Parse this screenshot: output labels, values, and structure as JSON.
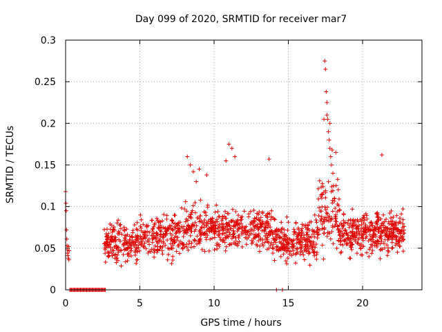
{
  "chart_data": {
    "type": "scatter",
    "title": "Day 099 of 2020, SRMTID for receiver mar7",
    "xlabel": "GPS time / hours",
    "ylabel": "SRMTID / TECUs",
    "xlim": [
      0,
      24
    ],
    "ylim": [
      0,
      0.3
    ],
    "xticks": [
      0,
      5,
      10,
      15,
      20
    ],
    "yticks": [
      0,
      0.05,
      0.1,
      0.15,
      0.2,
      0.25,
      0.3
    ],
    "xtick_labels": [
      "0",
      "5",
      "10",
      "15",
      "20"
    ],
    "ytick_labels": [
      "0",
      "0.05",
      "0.1",
      "0.15",
      "0.2",
      "0.25",
      "0.3"
    ],
    "grid": true,
    "marker": "+",
    "series_color": "#e00000",
    "series": [
      {
        "name": "SRMTID",
        "x": [
          0.0,
          0.02,
          0.04,
          0.06,
          0.08,
          0.1,
          0.12,
          0.14,
          0.16,
          0.18,
          0.2,
          0.22,
          0.24,
          0.28,
          0.34,
          0.4,
          0.46,
          0.52,
          0.58,
          0.64,
          0.7,
          0.76,
          0.82,
          0.88,
          0.94,
          1.0,
          1.06,
          1.12,
          1.18,
          1.24,
          1.3,
          1.36,
          1.42,
          1.48,
          1.54,
          1.6,
          1.66,
          1.72,
          1.78,
          1.84,
          1.9,
          1.96,
          2.02,
          2.08,
          2.14,
          2.2,
          2.26,
          2.32,
          2.38,
          2.44,
          2.5,
          2.56,
          2.62,
          2.68,
          14.2,
          14.6,
          17.45,
          17.5,
          17.55,
          17.6,
          17.65,
          17.7,
          17.75,
          17.8,
          17.85,
          17.9,
          17.95,
          18.0,
          18.05,
          18.1,
          18.15,
          18.2,
          18.25,
          18.3,
          18.35,
          18.4,
          18.45,
          18.5,
          18.55,
          18.6,
          18.65,
          18.7,
          18.75,
          18.8,
          18.85,
          18.9,
          18.95,
          19.0,
          19.1,
          19.2,
          19.3,
          19.4,
          19.5,
          19.6,
          19.7,
          19.8,
          19.9,
          20.0,
          20.1,
          20.2,
          20.3,
          20.4,
          20.5,
          20.6,
          20.7,
          20.8,
          20.9,
          21.0,
          21.1,
          21.2,
          21.3,
          21.4,
          21.5,
          21.6,
          21.7,
          21.8,
          21.9,
          22.0,
          22.1,
          22.2,
          22.3,
          22.4,
          22.5,
          22.6,
          22.7,
          22.8,
          8.2,
          8.4,
          8.6,
          8.8,
          9.0,
          9.5,
          10.8,
          11.0,
          11.2,
          11.4,
          13.7,
          17.4,
          17.6,
          17.8,
          18.2
        ],
        "y": [
          0.118,
          0.104,
          0.095,
          0.072,
          0.061,
          0.053,
          0.048,
          0.044,
          0.041,
          0.038,
          0.052,
          0.036,
          0.047,
          0.0,
          0.0,
          0.0,
          0.0,
          0.0,
          0.0,
          0.0,
          0.0,
          0.0,
          0.0,
          0.0,
          0.0,
          0.0,
          0.0,
          0.0,
          0.0,
          0.0,
          0.0,
          0.0,
          0.0,
          0.0,
          0.0,
          0.0,
          0.0,
          0.0,
          0.0,
          0.0,
          0.0,
          0.0,
          0.0,
          0.0,
          0.0,
          0.0,
          0.0,
          0.0,
          0.0,
          0.0,
          0.0,
          0.0,
          0.0,
          0.0,
          0.0,
          0.0,
          0.275,
          0.265,
          0.238,
          0.225,
          0.205,
          0.19,
          0.18,
          0.17,
          0.16,
          0.15,
          0.168,
          0.14,
          0.125,
          0.11,
          0.098,
          0.088,
          0.082,
          0.076,
          0.072,
          0.069,
          0.066,
          0.062,
          0.07,
          0.078,
          0.074,
          0.065,
          0.06,
          0.058,
          0.072,
          0.068,
          0.055,
          0.062,
          0.075,
          0.08,
          0.07,
          0.065,
          0.06,
          0.073,
          0.082,
          0.068,
          0.055,
          0.062,
          0.07,
          0.078,
          0.085,
          0.072,
          0.066,
          0.06,
          0.058,
          0.075,
          0.08,
          0.088,
          0.07,
          0.065,
          0.162,
          0.09,
          0.075,
          0.068,
          0.06,
          0.07,
          0.082,
          0.078,
          0.072,
          0.065,
          0.06,
          0.055,
          0.062,
          0.07,
          0.075,
          0.068,
          0.16,
          0.15,
          0.142,
          0.13,
          0.145,
          0.138,
          0.155,
          0.175,
          0.17,
          0.16,
          0.157,
          0.205,
          0.21,
          0.2,
          0.165
        ]
      }
    ]
  }
}
